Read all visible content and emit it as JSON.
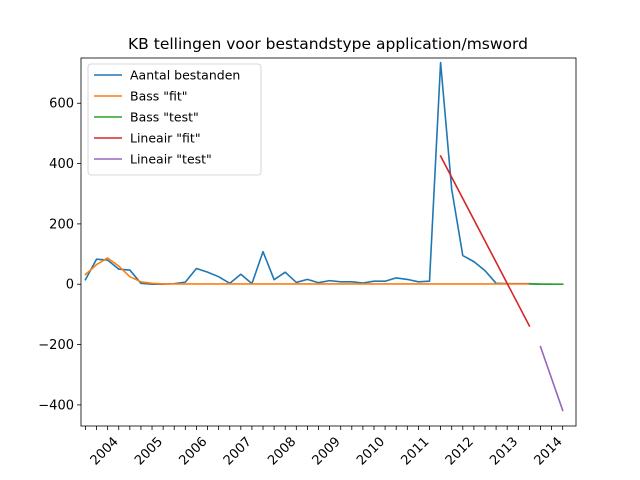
{
  "chart_data": {
    "type": "line",
    "title": "KB tellingen voor bestandstype application/msword",
    "xlabel": "",
    "ylabel": "",
    "xlim": [
      2003.4,
      2014.55
    ],
    "ylim": [
      -470,
      750
    ],
    "y_ticks": [
      -400,
      -200,
      0,
      200,
      400,
      600
    ],
    "x_tick_positions": [
      2003.5,
      2003.75,
      2004.0,
      2004.25,
      2004.5,
      2004.75,
      2005.0,
      2005.25,
      2005.5,
      2005.75,
      2006.0,
      2006.25,
      2006.5,
      2006.75,
      2007.0,
      2007.25,
      2007.5,
      2007.75,
      2008.0,
      2008.25,
      2008.5,
      2008.75,
      2009.0,
      2009.25,
      2009.5,
      2009.75,
      2010.0,
      2010.25,
      2010.5,
      2010.75,
      2011.0,
      2011.25,
      2011.5,
      2011.75,
      2012.0,
      2012.25,
      2012.5,
      2012.75,
      2013.0,
      2013.25,
      2013.5,
      2013.75,
      2014.0,
      2014.25
    ],
    "x_tick_labels": [
      {
        "label": "2004",
        "x": 2004.0
      },
      {
        "label": "2005",
        "x": 2005.0
      },
      {
        "label": "2006",
        "x": 2006.0
      },
      {
        "label": "2007",
        "x": 2007.0
      },
      {
        "label": "2008",
        "x": 2008.0
      },
      {
        "label": "2009",
        "x": 2009.0
      },
      {
        "label": "2010",
        "x": 2010.0
      },
      {
        "label": "2011",
        "x": 2011.0
      },
      {
        "label": "2012",
        "x": 2012.0
      },
      {
        "label": "2013",
        "x": 2013.0
      },
      {
        "label": "2014",
        "x": 2014.0
      }
    ],
    "legend_position": "top-left",
    "grid": false,
    "series": [
      {
        "name": "Aantal bestanden",
        "color": "#1f77b4",
        "x": [
          2003.5,
          2003.75,
          2004.0,
          2004.25,
          2004.5,
          2004.75,
          2005.0,
          2005.25,
          2005.5,
          2005.75,
          2006.0,
          2006.25,
          2006.5,
          2006.75,
          2007.0,
          2007.25,
          2007.5,
          2007.75,
          2008.0,
          2008.25,
          2008.5,
          2008.75,
          2009.0,
          2009.25,
          2009.5,
          2009.75,
          2010.0,
          2010.25,
          2010.5,
          2010.75,
          2011.0,
          2011.25,
          2011.5,
          2011.75,
          2012.0,
          2012.25,
          2012.5,
          2012.75,
          2013.0,
          2013.25,
          2013.5,
          2013.75,
          2014.0
        ],
        "y": [
          15,
          83,
          80,
          50,
          47,
          3,
          0,
          0,
          2,
          7,
          52,
          40,
          25,
          3,
          33,
          2,
          108,
          15,
          40,
          6,
          16,
          5,
          12,
          8,
          8,
          4,
          10,
          10,
          21,
          16,
          8,
          10,
          735,
          315,
          95,
          75,
          45,
          3,
          2,
          2,
          2,
          0,
          0
        ]
      },
      {
        "name": "Bass \"fit\"",
        "color": "#ff7f0e",
        "x": [
          2003.5,
          2003.75,
          2004.0,
          2004.25,
          2004.5,
          2004.75,
          2005.0,
          2005.25,
          2005.5,
          2005.75,
          2006.0,
          2006.5,
          2007.0,
          2008.0,
          2009.0,
          2010.0,
          2011.0,
          2012.0,
          2013.0,
          2013.5
        ],
        "y": [
          32,
          65,
          87,
          60,
          25,
          8,
          3,
          1,
          1,
          1,
          1,
          1,
          1,
          1,
          1,
          1,
          1,
          1,
          1,
          1
        ]
      },
      {
        "name": "Bass \"test\"",
        "color": "#2ca02c",
        "x": [
          2013.5,
          2013.75,
          2014.0,
          2014.25
        ],
        "y": [
          1,
          0,
          0,
          0
        ]
      },
      {
        "name": "Lineair \"fit\"",
        "color": "#d62728",
        "x": [
          2011.5,
          2013.5
        ],
        "y": [
          425,
          -138
        ]
      },
      {
        "name": "Lineair \"test\"",
        "color": "#9467bd",
        "x": [
          2013.75,
          2014.25
        ],
        "y": [
          -207,
          -418
        ]
      }
    ]
  }
}
